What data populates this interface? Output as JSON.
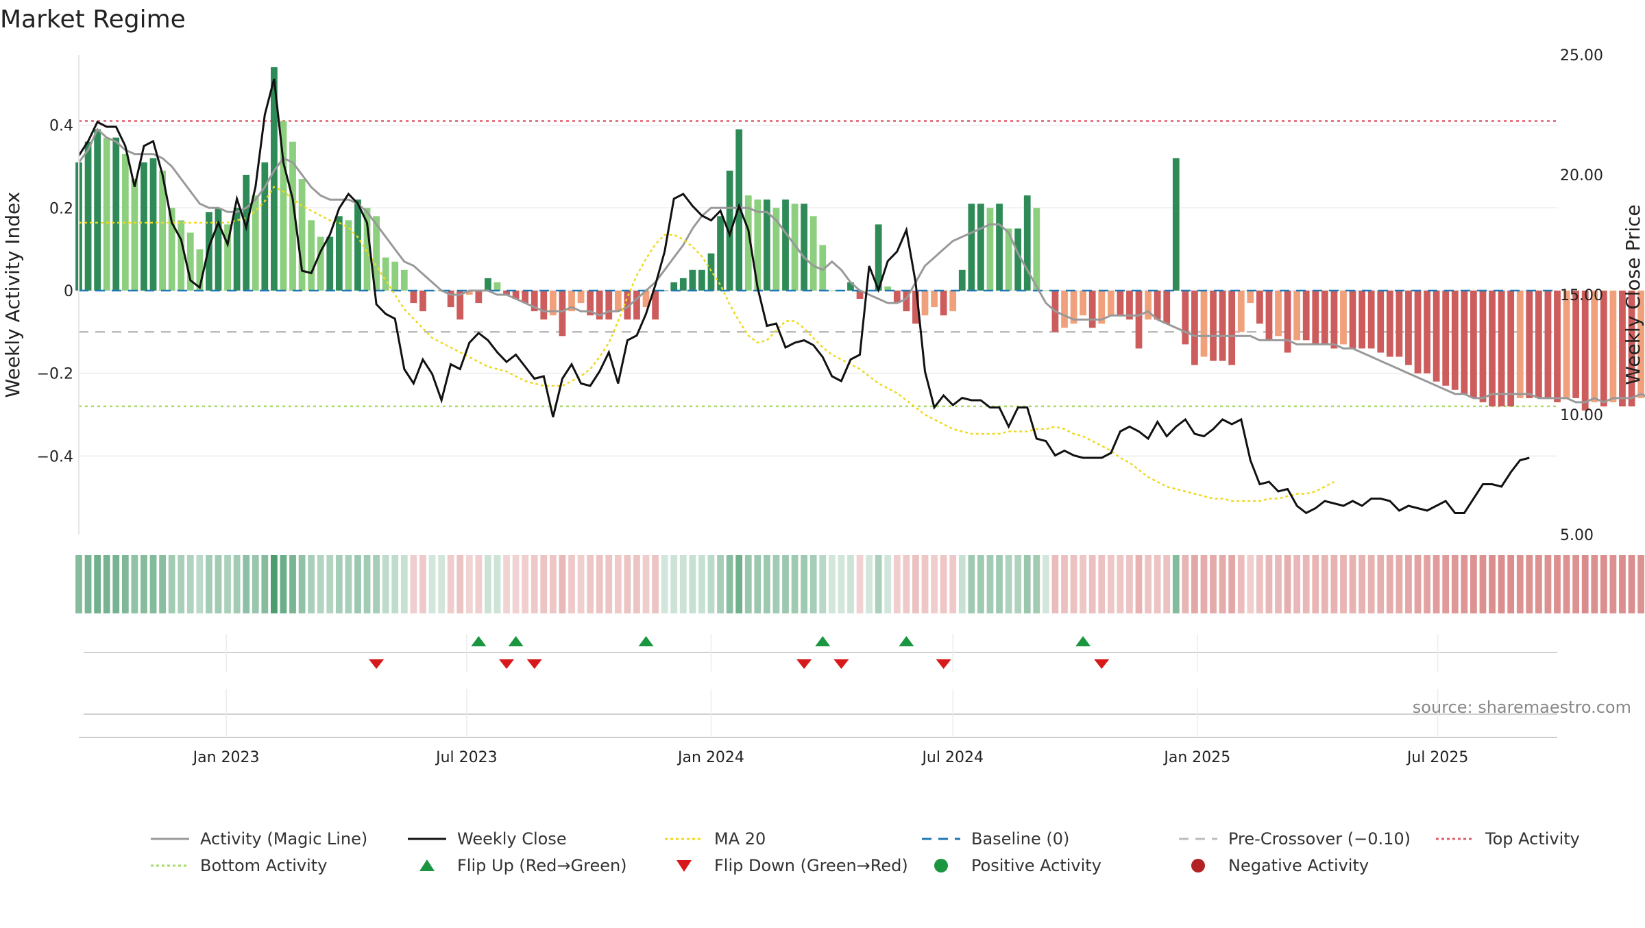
{
  "title": "Market Regime",
  "source": "source: sharemaestro.com",
  "colors": {
    "bar_strong_pos": "#2e8b57",
    "bar_weak_pos": "#8ccf7e",
    "bar_strong_neg": "#cd5c5c",
    "bar_weak_neg": "#f0a07a",
    "magic_line": "#999999",
    "close": "#111111",
    "ma20": "#f0d81e",
    "baseline": "#1f77b4",
    "pre_crossover": "#bbbbbb",
    "top": "#e05a6a",
    "bottom": "#a6d96a",
    "flip_up": "#1a9641",
    "flip_down": "#d7191c",
    "positive": "#1a9641",
    "negative": "#b22222"
  },
  "chart_data": {
    "type": "bar",
    "title": "Market Regime",
    "ylabel_left": "Weekly Activity Index",
    "ylabel_right": "Weekly Close Price",
    "yticks_left": [
      "0.4",
      "0.2",
      "0",
      "−0.2",
      "−0.4"
    ],
    "yticks_left_values": [
      0.4,
      0.2,
      0,
      -0.2,
      -0.4
    ],
    "yticks_right": [
      "25.00",
      "20.00",
      "15.00",
      "10.00",
      "5.00"
    ],
    "yticks_right_values": [
      25,
      20,
      15,
      10,
      5
    ],
    "ylim_left": [
      -0.59,
      0.57
    ],
    "ylim_right": [
      5,
      25
    ],
    "xlim": [
      "2022-09-12",
      "2025-09-29"
    ],
    "xticks": [
      "Jan 2023",
      "Jul 2023",
      "Jan 2024",
      "Jul 2024",
      "Jan 2025",
      "Jul 2025"
    ],
    "xtick_dates": [
      "2023-01-01",
      "2023-07-01",
      "2024-01-01",
      "2024-07-01",
      "2025-01-01",
      "2025-07-01"
    ],
    "start_date": "2022-09-12",
    "week_days": 7,
    "thresholds": {
      "baseline": 0,
      "pre_crossover": -0.1,
      "top": 0.41,
      "bottom": -0.28
    },
    "activity": [
      0.31,
      0.36,
      0.39,
      0.37,
      0.37,
      0.33,
      0.27,
      0.31,
      0.32,
      0.29,
      0.2,
      0.17,
      0.14,
      0.1,
      0.19,
      0.2,
      0.16,
      0.2,
      0.28,
      0.23,
      0.31,
      0.54,
      0.41,
      0.36,
      0.27,
      0.17,
      0.13,
      0.13,
      0.18,
      0.17,
      0.22,
      0.2,
      0.18,
      0.08,
      0.07,
      0.05,
      -0.03,
      -0.05,
      0,
      0,
      -0.04,
      -0.07,
      -0.01,
      -0.03,
      0.03,
      0.02,
      -0.01,
      -0.02,
      -0.03,
      -0.05,
      -0.07,
      -0.06,
      -0.11,
      -0.05,
      -0.03,
      -0.06,
      -0.07,
      -0.07,
      -0.05,
      -0.07,
      -0.07,
      -0.04,
      -0.07,
      0,
      0.02,
      0.03,
      0.05,
      0.05,
      0.09,
      0.18,
      0.29,
      0.39,
      0.23,
      0.22,
      0.22,
      0.2,
      0.22,
      0.21,
      0.21,
      0.18,
      0.11,
      0,
      0,
      0.02,
      -0.02,
      0,
      0.16,
      0.01,
      -0.03,
      -0.05,
      -0.08,
      -0.06,
      -0.04,
      -0.06,
      -0.05,
      0.05,
      0.21,
      0.21,
      0.2,
      0.21,
      0.15,
      0.15,
      0.23,
      0.2,
      0,
      -0.1,
      -0.09,
      -0.08,
      -0.06,
      -0.09,
      -0.08,
      -0.06,
      -0.06,
      -0.07,
      -0.14,
      -0.07,
      -0.07,
      -0.08,
      0.32,
      -0.13,
      -0.18,
      -0.16,
      -0.17,
      -0.17,
      -0.18,
      -0.1,
      -0.03,
      -0.08,
      -0.12,
      -0.11,
      -0.15,
      -0.12,
      -0.12,
      -0.13,
      -0.13,
      -0.14,
      -0.13,
      -0.14,
      -0.14,
      -0.14,
      -0.15,
      -0.16,
      -0.16,
      -0.18,
      -0.2,
      -0.2,
      -0.22,
      -0.23,
      -0.24,
      -0.25,
      -0.26,
      -0.27,
      -0.28,
      -0.28,
      -0.28,
      -0.26,
      -0.26,
      -0.26,
      -0.26,
      -0.27,
      -0.26,
      -0.26,
      -0.29,
      -0.27,
      -0.28,
      -0.27,
      -0.28,
      -0.28,
      -0.26,
      -0.27,
      -0.26,
      -0.26,
      -0.27,
      -0.26,
      -0.22,
      -0.2
    ],
    "magic_line": [
      0.31,
      0.34,
      0.39,
      0.37,
      0.36,
      0.34,
      0.33,
      0.33,
      0.33,
      0.32,
      0.3,
      0.27,
      0.24,
      0.21,
      0.2,
      0.2,
      0.19,
      0.19,
      0.2,
      0.22,
      0.25,
      0.29,
      0.32,
      0.31,
      0.28,
      0.25,
      0.23,
      0.22,
      0.22,
      0.22,
      0.21,
      0.19,
      0.16,
      0.13,
      0.1,
      0.07,
      0.06,
      0.04,
      0.02,
      0,
      -0.01,
      -0.01,
      0,
      0,
      0,
      -0.01,
      -0.01,
      -0.02,
      -0.03,
      -0.04,
      -0.05,
      -0.05,
      -0.05,
      -0.04,
      -0.05,
      -0.05,
      -0.06,
      -0.05,
      -0.05,
      -0.04,
      -0.02,
      0,
      0.02,
      0.05,
      0.08,
      0.11,
      0.15,
      0.18,
      0.2,
      0.2,
      0.2,
      0.2,
      0.2,
      0.19,
      0.19,
      0.17,
      0.14,
      0.11,
      0.08,
      0.06,
      0.05,
      0.07,
      0.05,
      0.02,
      0,
      -0.01,
      -0.02,
      -0.03,
      -0.03,
      -0.02,
      0.02,
      0.06,
      0.08,
      0.1,
      0.12,
      0.13,
      0.14,
      0.15,
      0.16,
      0.16,
      0.14,
      0.09,
      0.05,
      0.01,
      -0.03,
      -0.05,
      -0.06,
      -0.07,
      -0.07,
      -0.07,
      -0.07,
      -0.06,
      -0.06,
      -0.06,
      -0.06,
      -0.05,
      -0.07,
      -0.08,
      -0.09,
      -0.1,
      -0.11,
      -0.11,
      -0.11,
      -0.11,
      -0.11,
      -0.11,
      -0.11,
      -0.12,
      -0.12,
      -0.12,
      -0.12,
      -0.13,
      -0.13,
      -0.13,
      -0.13,
      -0.13,
      -0.14,
      -0.14,
      -0.15,
      -0.16,
      -0.17,
      -0.18,
      -0.19,
      -0.2,
      -0.21,
      -0.22,
      -0.23,
      -0.24,
      -0.25,
      -0.25,
      -0.26,
      -0.26,
      -0.25,
      -0.25,
      -0.25,
      -0.25,
      -0.25,
      -0.26,
      -0.26,
      -0.26,
      -0.26,
      -0.27,
      -0.27,
      -0.26,
      -0.27,
      -0.26,
      -0.26,
      -0.26,
      -0.25,
      -0.26,
      -0.26,
      -0.25,
      -0.24,
      -0.23
    ],
    "close": [
      20.8,
      21.4,
      22.2,
      22.0,
      22.0,
      21.2,
      19.5,
      21.2,
      21.4,
      20.0,
      18.0,
      17.3,
      15.6,
      15.3,
      17.0,
      18.0,
      17.1,
      19.0,
      17.8,
      19.5,
      22.5,
      24.0,
      20.5,
      19.0,
      16.0,
      15.9,
      16.8,
      17.5,
      18.6,
      19.2,
      18.8,
      18.0,
      14.6,
      14.2,
      14.0,
      11.9,
      11.3,
      12.3,
      11.7,
      10.6,
      12.1,
      11.9,
      13.0,
      13.4,
      13.1,
      12.6,
      12.2,
      12.5,
      12.0,
      11.5,
      11.6,
      9.9,
      11.5,
      12.1,
      11.3,
      11.2,
      11.8,
      12.6,
      11.3,
      13.1,
      13.3,
      14.2,
      15.4,
      16.8,
      19.0,
      19.2,
      18.7,
      18.3,
      18.1,
      18.5,
      17.5,
      18.7,
      17.7,
      15.3,
      13.7,
      13.8,
      12.8,
      13.0,
      13.1,
      12.9,
      12.4,
      11.6,
      11.4,
      12.3,
      12.5,
      16.2,
      15.2,
      16.4,
      16.8,
      17.7,
      15.5,
      11.8,
      10.3,
      10.8,
      10.4,
      10.7,
      10.6,
      10.6,
      10.3,
      10.3,
      9.5,
      10.3,
      10.3,
      9.0,
      8.9,
      8.3,
      8.5,
      8.3,
      8.2,
      8.2,
      8.2,
      8.4,
      9.3,
      9.5,
      9.3,
      9.0,
      9.7,
      9.1,
      9.5,
      9.8,
      9.2,
      9.1,
      9.4,
      9.8,
      9.6,
      9.8,
      8.1,
      7.1,
      7.2,
      6.8,
      6.9,
      6.2,
      5.9,
      6.1,
      6.4,
      6.3,
      6.2,
      6.4,
      6.2,
      6.5,
      6.5,
      6.4,
      6.0,
      6.2,
      6.1,
      6.0,
      6.2,
      6.4,
      5.9,
      5.9,
      6.5,
      7.1,
      7.1,
      7.0,
      7.6,
      8.1,
      8.2
    ],
    "ma20": [
      18.0,
      18.0,
      18.0,
      18.0,
      18.0,
      18.0,
      18.0,
      18.0,
      18.0,
      18.0,
      18.0,
      18.0,
      18.0,
      18.0,
      18.0,
      18.0,
      18.0,
      18.1,
      18.2,
      18.5,
      18.9,
      19.5,
      19.3,
      19.0,
      18.7,
      18.5,
      18.3,
      18.1,
      18.0,
      17.8,
      17.4,
      16.8,
      16.2,
      15.6,
      15.0,
      14.4,
      14.0,
      13.6,
      13.2,
      13.0,
      12.8,
      12.6,
      12.4,
      12.2,
      12.0,
      11.9,
      11.8,
      11.6,
      11.4,
      11.3,
      11.2,
      11.2,
      11.2,
      11.4,
      11.6,
      11.9,
      12.4,
      13.0,
      13.9,
      14.9,
      15.8,
      16.5,
      17.1,
      17.5,
      17.5,
      17.3,
      17.0,
      16.6,
      16.0,
      15.4,
      14.6,
      13.9,
      13.3,
      13.0,
      13.1,
      13.5,
      13.9,
      13.9,
      13.6,
      13.2,
      12.8,
      12.5,
      12.3,
      12.1,
      11.9,
      11.6,
      11.3,
      11.1,
      10.9,
      10.6,
      10.3,
      10.0,
      9.8,
      9.6,
      9.4,
      9.3,
      9.2,
      9.2,
      9.2,
      9.2,
      9.3,
      9.3,
      9.3,
      9.4,
      9.4,
      9.5,
      9.4,
      9.2,
      9.1,
      8.9,
      8.7,
      8.5,
      8.2,
      8.0,
      7.7,
      7.4,
      7.2,
      7.0,
      6.9,
      6.8,
      6.7,
      6.6,
      6.5,
      6.5,
      6.4,
      6.4,
      6.4,
      6.4,
      6.5,
      6.5,
      6.6,
      6.7,
      6.7,
      6.8,
      7.0,
      7.2
    ],
    "flip_up": [
      "2023-07-10",
      "2023-08-07",
      "2023-11-13",
      "2024-03-25",
      "2024-05-27",
      "2024-10-07"
    ],
    "flip_down": [
      "2023-04-24",
      "2023-07-31",
      "2023-08-21",
      "2024-03-11",
      "2024-04-08",
      "2024-06-24",
      "2024-10-21"
    ],
    "legend": [
      {
        "key": "magic_line",
        "label": "Activity (Magic Line)",
        "kind": "line-solid"
      },
      {
        "key": "close",
        "label": "Weekly Close",
        "kind": "line-solid"
      },
      {
        "key": "ma20",
        "label": "MA 20",
        "kind": "line-dot"
      },
      {
        "key": "baseline",
        "label": "Baseline (0)",
        "kind": "line-dash"
      },
      {
        "key": "pre_crossover",
        "label": "Pre-Crossover (−0.10)",
        "kind": "line-dash"
      },
      {
        "key": "top",
        "label": "Top Activity",
        "kind": "line-dot"
      },
      {
        "key": "bottom",
        "label": "Bottom Activity",
        "kind": "line-dot"
      },
      {
        "key": "flip_up",
        "label": "Flip Up (Red→Green)",
        "kind": "tri-up"
      },
      {
        "key": "flip_down",
        "label": "Flip Down (Green→Red)",
        "kind": "tri-down"
      },
      {
        "key": "positive",
        "label": "Positive Activity",
        "kind": "dot"
      },
      {
        "key": "negative",
        "label": "Negative Activity",
        "kind": "dot"
      }
    ]
  }
}
